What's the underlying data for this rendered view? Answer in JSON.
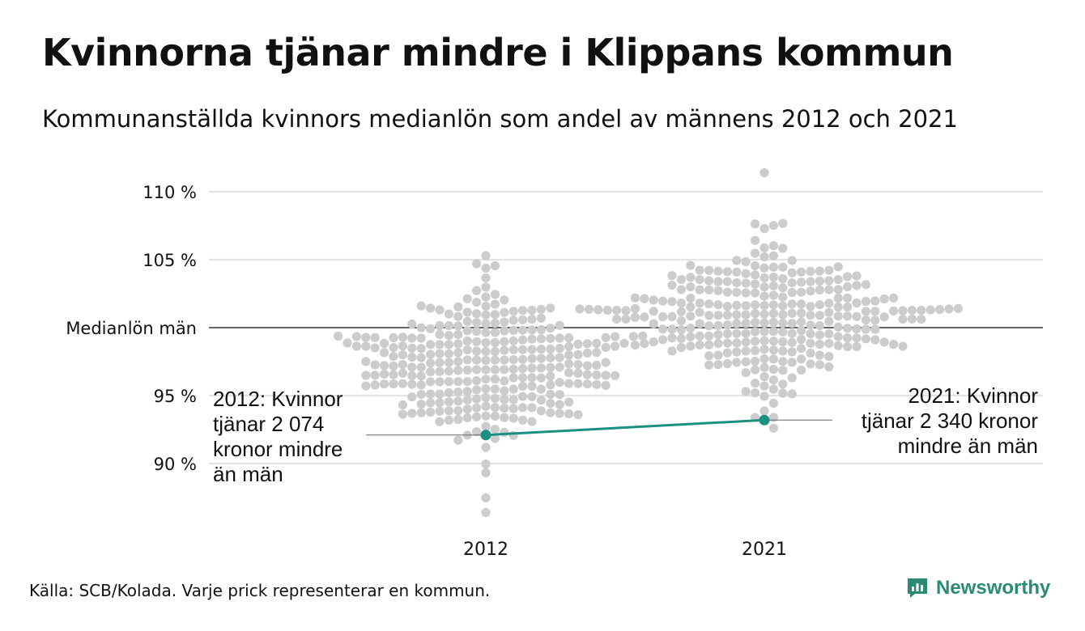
{
  "title": "Kvinnorna tjänar mindre i Klippans kommun",
  "subtitle": "Kommunanställda kvinnors medianlön som andel av männens 2012 och 2021",
  "footer": "Källa: SCB/Kolada. Varje prick representerar en kommun.",
  "brand": {
    "name": "Newsworthy",
    "icon": "newsworthy-logo-icon",
    "color": "#2a8a78"
  },
  "chart_data": {
    "type": "scatter",
    "categories": [
      "2012",
      "2021"
    ],
    "ylim": [
      86,
      112
    ],
    "yticks": [
      {
        "value": 110,
        "label": "110 %"
      },
      {
        "value": 105,
        "label": "105 %"
      },
      {
        "value": 100,
        "label": "Medianlön män"
      },
      {
        "value": 95,
        "label": "95 %"
      },
      {
        "value": 90,
        "label": "90 %"
      }
    ],
    "reference_line": 100,
    "colors": {
      "dots": "#cccccc",
      "highlight": "#1a9080",
      "grid": "#e3e3e3",
      "reference": "#333333"
    },
    "distributions": {
      "2012": {
        "median": 96.9,
        "sd": 2.6,
        "min": 86.4,
        "max": 105.3
      },
      "2021": {
        "median": 101.0,
        "sd": 2.6,
        "min": 92.6,
        "max": 111.4
      }
    },
    "highlight": {
      "name": "Klippans kommun",
      "points": [
        {
          "x": "2012",
          "y": 92.1
        },
        {
          "x": "2021",
          "y": 93.2
        }
      ]
    },
    "annotations": [
      {
        "x": "2012",
        "text": "2012: Kvinnor\ntjänar 2 074\nkronor mindre\nän män"
      },
      {
        "x": "2021",
        "text": "2021: Kvinnor\ntjänar 2 340 kronor\nmindre än män"
      }
    ]
  }
}
